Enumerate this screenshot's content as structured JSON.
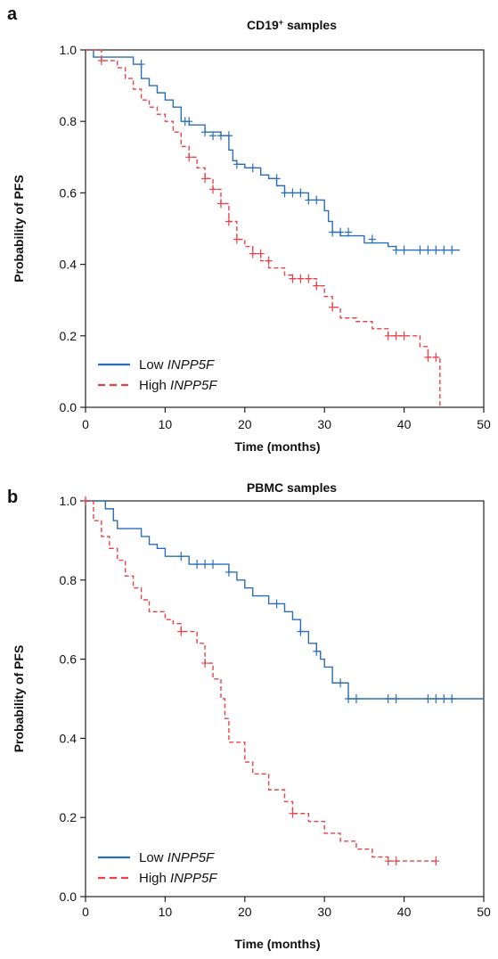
{
  "panels": [
    {
      "letter": "a",
      "title_main": "CD19",
      "title_sup": "+",
      "title_rest": " samples"
    },
    {
      "letter": "b",
      "title_main": "PBMC samples",
      "title_sup": "",
      "title_rest": ""
    }
  ],
  "legend": [
    {
      "prefix": "Low ",
      "gene": "INPP5F"
    },
    {
      "prefix": "High ",
      "gene": "INPP5F"
    }
  ],
  "colors": {
    "low": "#2a6ebb",
    "high": "#e8414a"
  },
  "chart_data": [
    {
      "type": "line",
      "title": "CD19+ samples",
      "xlabel": "Time (months)",
      "ylabel": "Probability of PFS",
      "xlim": [
        0,
        50
      ],
      "ylim": [
        0,
        1
      ],
      "x_ticks": [
        0,
        10,
        20,
        30,
        40,
        50
      ],
      "y_ticks": [
        "0.0",
        "0.2",
        "0.4",
        "0.6",
        "0.8",
        "1.0"
      ],
      "legend_position": "bottom-left",
      "series": [
        {
          "name": "Low INPP5F",
          "style": "solid",
          "steps": [
            [
              0,
              1.0
            ],
            [
              1,
              0.98
            ],
            [
              6,
              0.96
            ],
            [
              7,
              0.92
            ],
            [
              8,
              0.9
            ],
            [
              9,
              0.88
            ],
            [
              10,
              0.86
            ],
            [
              11,
              0.84
            ],
            [
              12,
              0.8
            ],
            [
              13,
              0.79
            ],
            [
              15,
              0.77
            ],
            [
              17,
              0.76
            ],
            [
              18,
              0.72
            ],
            [
              18.5,
              0.69
            ],
            [
              19,
              0.68
            ],
            [
              20,
              0.67
            ],
            [
              22,
              0.65
            ],
            [
              23,
              0.64
            ],
            [
              24,
              0.62
            ],
            [
              25,
              0.6
            ],
            [
              26,
              0.6
            ],
            [
              28,
              0.58
            ],
            [
              30,
              0.55
            ],
            [
              30.5,
              0.52
            ],
            [
              31,
              0.49
            ],
            [
              32,
              0.48
            ],
            [
              34,
              0.48
            ],
            [
              35,
              0.46
            ],
            [
              38,
              0.45
            ],
            [
              39,
              0.44
            ],
            [
              47,
              0.44
            ]
          ],
          "censored": [
            [
              7,
              0.96
            ],
            [
              12.5,
              0.8
            ],
            [
              13,
              0.8
            ],
            [
              15,
              0.77
            ],
            [
              16,
              0.76
            ],
            [
              17,
              0.76
            ],
            [
              18,
              0.76
            ],
            [
              19,
              0.68
            ],
            [
              21,
              0.67
            ],
            [
              24,
              0.64
            ],
            [
              25,
              0.6
            ],
            [
              26,
              0.6
            ],
            [
              27,
              0.6
            ],
            [
              28,
              0.58
            ],
            [
              29,
              0.58
            ],
            [
              31,
              0.49
            ],
            [
              32,
              0.49
            ],
            [
              33,
              0.49
            ],
            [
              36,
              0.47
            ],
            [
              39,
              0.44
            ],
            [
              40,
              0.44
            ],
            [
              42,
              0.44
            ],
            [
              43,
              0.44
            ],
            [
              44,
              0.44
            ],
            [
              45,
              0.44
            ],
            [
              46,
              0.44
            ]
          ]
        },
        {
          "name": "High INPP5F",
          "style": "dashed",
          "steps": [
            [
              0,
              1.0
            ],
            [
              2,
              0.97
            ],
            [
              4,
              0.95
            ],
            [
              5,
              0.92
            ],
            [
              6,
              0.89
            ],
            [
              7,
              0.86
            ],
            [
              8,
              0.84
            ],
            [
              9,
              0.82
            ],
            [
              10,
              0.8
            ],
            [
              11,
              0.77
            ],
            [
              12,
              0.73
            ],
            [
              13,
              0.7
            ],
            [
              14,
              0.67
            ],
            [
              15,
              0.64
            ],
            [
              16,
              0.61
            ],
            [
              17,
              0.57
            ],
            [
              18,
              0.52
            ],
            [
              19,
              0.47
            ],
            [
              20,
              0.45
            ],
            [
              21,
              0.43
            ],
            [
              22,
              0.41
            ],
            [
              23,
              0.39
            ],
            [
              25,
              0.37
            ],
            [
              26,
              0.36
            ],
            [
              29,
              0.34
            ],
            [
              30,
              0.31
            ],
            [
              31,
              0.28
            ],
            [
              32,
              0.25
            ],
            [
              34,
              0.24
            ],
            [
              36,
              0.22
            ],
            [
              38,
              0.2
            ],
            [
              42,
              0.17
            ],
            [
              43,
              0.14
            ],
            [
              44.5,
              0.0
            ]
          ],
          "censored": [
            [
              2,
              0.97
            ],
            [
              13,
              0.7
            ],
            [
              15,
              0.64
            ],
            [
              16,
              0.61
            ],
            [
              17,
              0.57
            ],
            [
              18,
              0.52
            ],
            [
              19,
              0.47
            ],
            [
              21,
              0.43
            ],
            [
              22,
              0.43
            ],
            [
              23,
              0.41
            ],
            [
              26,
              0.36
            ],
            [
              27,
              0.36
            ],
            [
              28,
              0.36
            ],
            [
              29,
              0.34
            ],
            [
              31,
              0.28
            ],
            [
              38,
              0.2
            ],
            [
              39,
              0.2
            ],
            [
              40,
              0.2
            ],
            [
              43,
              0.14
            ],
            [
              44,
              0.14
            ]
          ]
        }
      ]
    },
    {
      "type": "line",
      "title": "PBMC samples",
      "xlabel": "Time (months)",
      "ylabel": "Probability of PFS",
      "xlim": [
        0,
        50
      ],
      "ylim": [
        0,
        1
      ],
      "x_ticks": [
        0,
        10,
        20,
        30,
        40,
        50
      ],
      "y_ticks": [
        "0.0",
        "0.2",
        "0.4",
        "0.6",
        "0.8",
        "1.0"
      ],
      "legend_position": "bottom-left",
      "series": [
        {
          "name": "Low INPP5F",
          "style": "solid",
          "steps": [
            [
              0,
              1.0
            ],
            [
              2.5,
              0.98
            ],
            [
              3.5,
              0.95
            ],
            [
              4,
              0.93
            ],
            [
              7,
              0.91
            ],
            [
              8,
              0.89
            ],
            [
              9,
              0.88
            ],
            [
              10,
              0.86
            ],
            [
              13,
              0.84
            ],
            [
              18,
              0.82
            ],
            [
              19,
              0.8
            ],
            [
              20,
              0.78
            ],
            [
              21,
              0.76
            ],
            [
              23,
              0.74
            ],
            [
              25,
              0.72
            ],
            [
              26,
              0.7
            ],
            [
              27,
              0.67
            ],
            [
              28,
              0.64
            ],
            [
              29,
              0.62
            ],
            [
              29.5,
              0.6
            ],
            [
              30,
              0.58
            ],
            [
              31,
              0.54
            ],
            [
              33,
              0.5
            ],
            [
              50,
              0.5
            ]
          ],
          "censored": [
            [
              0,
              1.0
            ],
            [
              12,
              0.86
            ],
            [
              14,
              0.84
            ],
            [
              15,
              0.84
            ],
            [
              16,
              0.84
            ],
            [
              18,
              0.82
            ],
            [
              24,
              0.74
            ],
            [
              27,
              0.67
            ],
            [
              29,
              0.62
            ],
            [
              32,
              0.54
            ],
            [
              33,
              0.5
            ],
            [
              34,
              0.5
            ],
            [
              38,
              0.5
            ],
            [
              39,
              0.5
            ],
            [
              43,
              0.5
            ],
            [
              44,
              0.5
            ],
            [
              45,
              0.5
            ],
            [
              46,
              0.5
            ]
          ]
        },
        {
          "name": "High INPP5F",
          "style": "dashed",
          "steps": [
            [
              0,
              1.0
            ],
            [
              1,
              0.95
            ],
            [
              2,
              0.91
            ],
            [
              3,
              0.88
            ],
            [
              4,
              0.85
            ],
            [
              5,
              0.81
            ],
            [
              6,
              0.78
            ],
            [
              7,
              0.75
            ],
            [
              8,
              0.72
            ],
            [
              10,
              0.7
            ],
            [
              11,
              0.69
            ],
            [
              12,
              0.67
            ],
            [
              14,
              0.64
            ],
            [
              15,
              0.59
            ],
            [
              16,
              0.55
            ],
            [
              17,
              0.5
            ],
            [
              17.5,
              0.45
            ],
            [
              18,
              0.39
            ],
            [
              20,
              0.34
            ],
            [
              21,
              0.31
            ],
            [
              23,
              0.27
            ],
            [
              25,
              0.24
            ],
            [
              26,
              0.21
            ],
            [
              28,
              0.19
            ],
            [
              30,
              0.16
            ],
            [
              32,
              0.14
            ],
            [
              34,
              0.12
            ],
            [
              36,
              0.1
            ],
            [
              38,
              0.09
            ],
            [
              44,
              0.09
            ]
          ],
          "censored": [
            [
              0,
              1.0
            ],
            [
              12,
              0.67
            ],
            [
              15,
              0.59
            ],
            [
              26,
              0.21
            ],
            [
              38,
              0.09
            ],
            [
              39,
              0.09
            ],
            [
              44,
              0.09
            ]
          ]
        }
      ]
    }
  ]
}
